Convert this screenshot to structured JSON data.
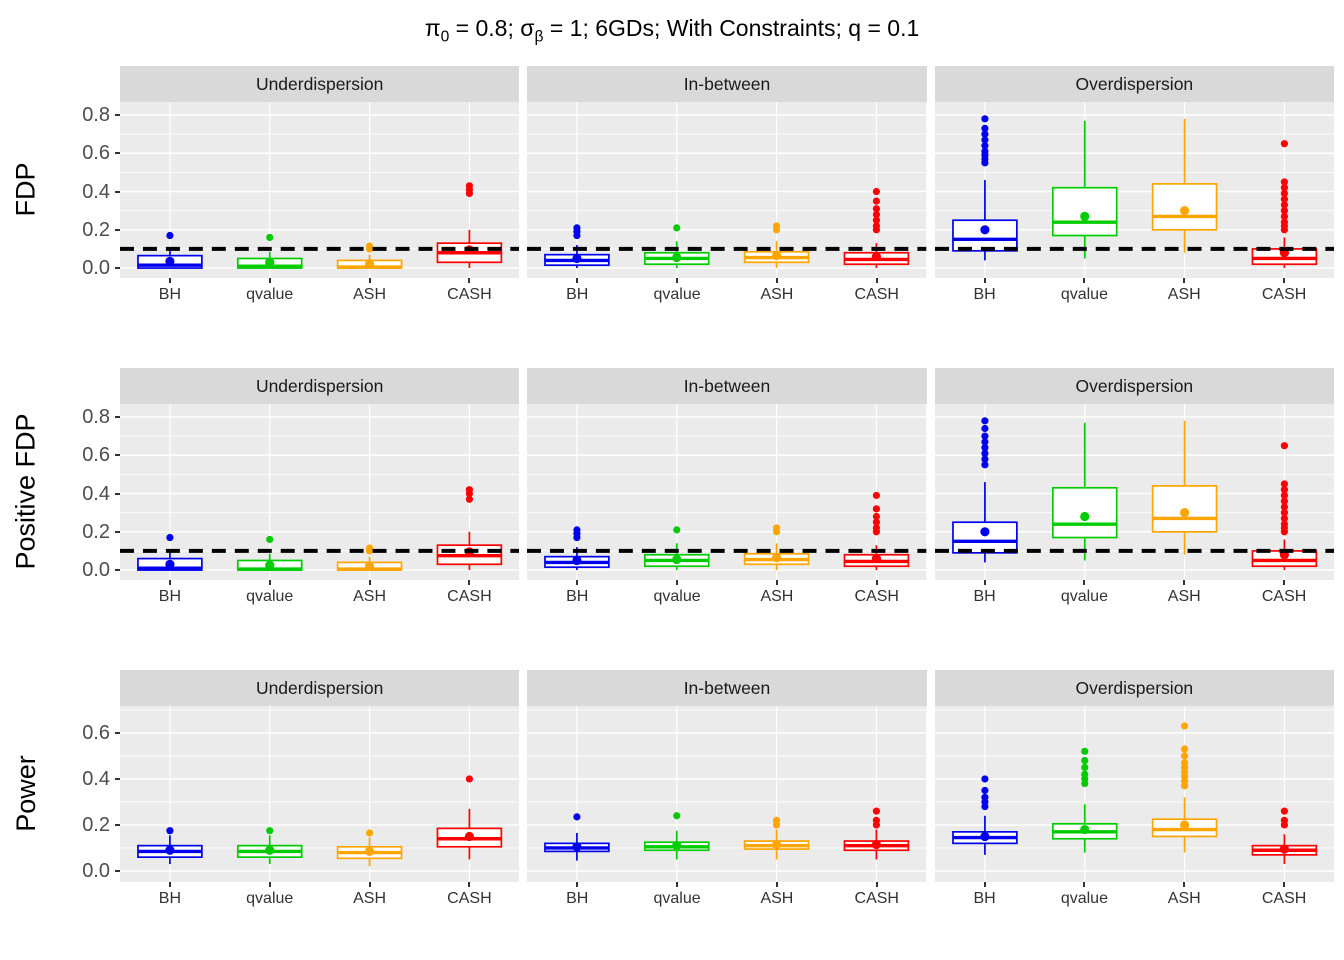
{
  "title": {
    "pi_symbol": "π",
    "pi_sub": "0",
    "segment1": " = 0.8; ",
    "sigma_symbol": "σ",
    "sigma_sub": "β",
    "segment2": " = 1; 6GDs; With Constraints; q = 0.1"
  },
  "methods": [
    "BH",
    "qvalue",
    "ASH",
    "CASH"
  ],
  "method_colors": {
    "BH": "#0000EE",
    "qvalue": "#00CC00",
    "ASH": "#FFA500",
    "CASH": "#FF0000"
  },
  "style": {
    "panel_bg": "#EBEBEB",
    "strip_bg": "#D9D9D9",
    "grid_color": "#FFFFFF",
    "ref_line_color": "#000000",
    "tick_text_color": "#4D4D4D",
    "xlabel_color": "#333333",
    "strip_text_color": "#1A1A1A"
  },
  "chart_data": [
    {
      "type": "boxplot",
      "ylabel": "FDP",
      "categories": [
        "BH",
        "qvalue",
        "ASH",
        "CASH"
      ],
      "facets": [
        "Underdispersion",
        "In-between",
        "Overdispersion"
      ],
      "ylim": [
        -0.052,
        0.868
      ],
      "yticks": [
        0.0,
        0.2,
        0.4,
        0.6,
        0.8
      ],
      "reference_line": 0.1,
      "grid": true,
      "panels": [
        {
          "facet": "Underdispersion",
          "boxes": [
            {
              "method": "BH",
              "low": 0,
              "q1": 0,
              "median": 0.015,
              "q3": 0.065,
              "high": 0.105,
              "mean": 0.035,
              "outliers": [
                0.17
              ]
            },
            {
              "method": "qvalue",
              "low": 0,
              "q1": 0,
              "median": 0.01,
              "q3": 0.05,
              "high": 0.085,
              "mean": 0.03,
              "outliers": [
                0.16
              ]
            },
            {
              "method": "ASH",
              "low": 0,
              "q1": 0,
              "median": 0.005,
              "q3": 0.04,
              "high": 0.07,
              "mean": 0.02,
              "outliers": [
                0.1,
                0.115
              ]
            },
            {
              "method": "CASH",
              "low": 0,
              "q1": 0.03,
              "median": 0.08,
              "q3": 0.13,
              "high": 0.2,
              "mean": 0.095,
              "outliers": [
                0.39,
                0.41,
                0.43
              ]
            }
          ]
        },
        {
          "facet": "In-between",
          "boxes": [
            {
              "method": "BH",
              "low": 0,
              "q1": 0.015,
              "median": 0.04,
              "q3": 0.07,
              "high": 0.12,
              "mean": 0.05,
              "outliers": [
                0.17,
                0.19,
                0.21
              ]
            },
            {
              "method": "qvalue",
              "low": 0,
              "q1": 0.02,
              "median": 0.05,
              "q3": 0.08,
              "high": 0.14,
              "mean": 0.055,
              "outliers": [
                0.21
              ]
            },
            {
              "method": "ASH",
              "low": 0,
              "q1": 0.03,
              "median": 0.055,
              "q3": 0.085,
              "high": 0.14,
              "mean": 0.065,
              "outliers": [
                0.2,
                0.22
              ]
            },
            {
              "method": "CASH",
              "low": 0,
              "q1": 0.02,
              "median": 0.045,
              "q3": 0.08,
              "high": 0.13,
              "mean": 0.06,
              "outliers": [
                0.2,
                0.22,
                0.25,
                0.28,
                0.31,
                0.35,
                0.4
              ]
            }
          ]
        },
        {
          "facet": "Overdispersion",
          "boxes": [
            {
              "method": "BH",
              "low": 0.04,
              "q1": 0.09,
              "median": 0.15,
              "q3": 0.25,
              "high": 0.46,
              "mean": 0.2,
              "outliers": [
                0.55,
                0.57,
                0.59,
                0.61,
                0.64,
                0.67,
                0.7,
                0.73,
                0.78
              ]
            },
            {
              "method": "qvalue",
              "low": 0.05,
              "q1": 0.17,
              "median": 0.24,
              "q3": 0.42,
              "high": 0.77,
              "mean": 0.27,
              "outliers": []
            },
            {
              "method": "ASH",
              "low": 0.08,
              "q1": 0.2,
              "median": 0.27,
              "q3": 0.44,
              "high": 0.78,
              "mean": 0.3,
              "outliers": []
            },
            {
              "method": "CASH",
              "low": 0,
              "q1": 0.02,
              "median": 0.05,
              "q3": 0.1,
              "high": 0.16,
              "mean": 0.08,
              "outliers": [
                0.2,
                0.22,
                0.24,
                0.27,
                0.3,
                0.33,
                0.36,
                0.39,
                0.42,
                0.45,
                0.65
              ]
            }
          ]
        }
      ]
    },
    {
      "type": "boxplot",
      "ylabel": "Positive FDP",
      "categories": [
        "BH",
        "qvalue",
        "ASH",
        "CASH"
      ],
      "facets": [
        "Underdispersion",
        "In-between",
        "Overdispersion"
      ],
      "ylim": [
        -0.052,
        0.868
      ],
      "yticks": [
        0.0,
        0.2,
        0.4,
        0.6,
        0.8
      ],
      "reference_line": 0.1,
      "grid": true,
      "panels": [
        {
          "facet": "Underdispersion",
          "boxes": [
            {
              "method": "BH",
              "low": 0,
              "q1": 0,
              "median": 0.01,
              "q3": 0.06,
              "high": 0.1,
              "mean": 0.03,
              "outliers": [
                0.17
              ]
            },
            {
              "method": "qvalue",
              "low": 0,
              "q1": 0,
              "median": 0.005,
              "q3": 0.05,
              "high": 0.085,
              "mean": 0.025,
              "outliers": [
                0.16
              ]
            },
            {
              "method": "ASH",
              "low": 0,
              "q1": 0,
              "median": 0.005,
              "q3": 0.04,
              "high": 0.07,
              "mean": 0.02,
              "outliers": [
                0.1,
                0.115
              ]
            },
            {
              "method": "CASH",
              "low": 0,
              "q1": 0.03,
              "median": 0.075,
              "q3": 0.13,
              "high": 0.2,
              "mean": 0.095,
              "outliers": [
                0.37,
                0.4,
                0.42
              ]
            }
          ]
        },
        {
          "facet": "In-between",
          "boxes": [
            {
              "method": "BH",
              "low": 0,
              "q1": 0.015,
              "median": 0.04,
              "q3": 0.07,
              "high": 0.12,
              "mean": 0.05,
              "outliers": [
                0.17,
                0.19,
                0.21
              ]
            },
            {
              "method": "qvalue",
              "low": 0,
              "q1": 0.02,
              "median": 0.05,
              "q3": 0.08,
              "high": 0.14,
              "mean": 0.055,
              "outliers": [
                0.21
              ]
            },
            {
              "method": "ASH",
              "low": 0,
              "q1": 0.03,
              "median": 0.055,
              "q3": 0.085,
              "high": 0.14,
              "mean": 0.065,
              "outliers": [
                0.2,
                0.22
              ]
            },
            {
              "method": "CASH",
              "low": 0,
              "q1": 0.02,
              "median": 0.045,
              "q3": 0.08,
              "high": 0.13,
              "mean": 0.06,
              "outliers": [
                0.2,
                0.22,
                0.25,
                0.28,
                0.32,
                0.39
              ]
            }
          ]
        },
        {
          "facet": "Overdispersion",
          "boxes": [
            {
              "method": "BH",
              "low": 0.04,
              "q1": 0.09,
              "median": 0.15,
              "q3": 0.25,
              "high": 0.46,
              "mean": 0.2,
              "outliers": [
                0.55,
                0.58,
                0.61,
                0.64,
                0.67,
                0.7,
                0.74,
                0.78
              ]
            },
            {
              "method": "qvalue",
              "low": 0.05,
              "q1": 0.17,
              "median": 0.24,
              "q3": 0.43,
              "high": 0.77,
              "mean": 0.28,
              "outliers": []
            },
            {
              "method": "ASH",
              "low": 0.08,
              "q1": 0.2,
              "median": 0.27,
              "q3": 0.44,
              "high": 0.78,
              "mean": 0.3,
              "outliers": []
            },
            {
              "method": "CASH",
              "low": 0,
              "q1": 0.02,
              "median": 0.05,
              "q3": 0.1,
              "high": 0.16,
              "mean": 0.08,
              "outliers": [
                0.2,
                0.22,
                0.24,
                0.27,
                0.3,
                0.33,
                0.36,
                0.39,
                0.42,
                0.45,
                0.65
              ]
            }
          ]
        }
      ]
    },
    {
      "type": "boxplot",
      "ylabel": "Power",
      "categories": [
        "BH",
        "qvalue",
        "ASH",
        "CASH"
      ],
      "facets": [
        "Underdispersion",
        "In-between",
        "Overdispersion"
      ],
      "ylim": [
        -0.048,
        0.717
      ],
      "yticks": [
        0.0,
        0.2,
        0.4,
        0.6
      ],
      "reference_line": null,
      "grid": true,
      "panels": [
        {
          "facet": "Underdispersion",
          "boxes": [
            {
              "method": "BH",
              "low": 0.03,
              "q1": 0.06,
              "median": 0.085,
              "q3": 0.11,
              "high": 0.155,
              "mean": 0.09,
              "outliers": [
                0.175
              ]
            },
            {
              "method": "qvalue",
              "low": 0.03,
              "q1": 0.06,
              "median": 0.085,
              "q3": 0.11,
              "high": 0.155,
              "mean": 0.09,
              "outliers": [
                0.175
              ]
            },
            {
              "method": "ASH",
              "low": 0.02,
              "q1": 0.055,
              "median": 0.08,
              "q3": 0.105,
              "high": 0.145,
              "mean": 0.085,
              "outliers": [
                0.165
              ]
            },
            {
              "method": "CASH",
              "low": 0.05,
              "q1": 0.105,
              "median": 0.14,
              "q3": 0.185,
              "high": 0.27,
              "mean": 0.15,
              "outliers": [
                0.4
              ]
            }
          ]
        },
        {
          "facet": "In-between",
          "boxes": [
            {
              "method": "BH",
              "low": 0.045,
              "q1": 0.085,
              "median": 0.1,
              "q3": 0.12,
              "high": 0.165,
              "mean": 0.105,
              "outliers": [
                0.235
              ]
            },
            {
              "method": "qvalue",
              "low": 0.05,
              "q1": 0.09,
              "median": 0.105,
              "q3": 0.125,
              "high": 0.175,
              "mean": 0.11,
              "outliers": [
                0.24
              ]
            },
            {
              "method": "ASH",
              "low": 0.05,
              "q1": 0.095,
              "median": 0.11,
              "q3": 0.13,
              "high": 0.18,
              "mean": 0.115,
              "outliers": [
                0.2,
                0.22
              ]
            },
            {
              "method": "CASH",
              "low": 0.05,
              "q1": 0.09,
              "median": 0.11,
              "q3": 0.13,
              "high": 0.18,
              "mean": 0.115,
              "outliers": [
                0.2,
                0.22,
                0.26
              ]
            }
          ]
        },
        {
          "facet": "Overdispersion",
          "boxes": [
            {
              "method": "BH",
              "low": 0.07,
              "q1": 0.12,
              "median": 0.145,
              "q3": 0.17,
              "high": 0.24,
              "mean": 0.15,
              "outliers": [
                0.28,
                0.3,
                0.32,
                0.35,
                0.4
              ]
            },
            {
              "method": "qvalue",
              "low": 0.08,
              "q1": 0.14,
              "median": 0.17,
              "q3": 0.205,
              "high": 0.29,
              "mean": 0.18,
              "outliers": [
                0.38,
                0.4,
                0.42,
                0.45,
                0.48,
                0.52
              ]
            },
            {
              "method": "ASH",
              "low": 0.08,
              "q1": 0.15,
              "median": 0.18,
              "q3": 0.225,
              "high": 0.32,
              "mean": 0.2,
              "outliers": [
                0.37,
                0.39,
                0.41,
                0.43,
                0.45,
                0.47,
                0.5,
                0.53,
                0.63
              ]
            },
            {
              "method": "CASH",
              "low": 0.03,
              "q1": 0.07,
              "median": 0.09,
              "q3": 0.11,
              "high": 0.16,
              "mean": 0.095,
              "outliers": [
                0.2,
                0.22,
                0.26
              ]
            }
          ]
        }
      ]
    }
  ]
}
